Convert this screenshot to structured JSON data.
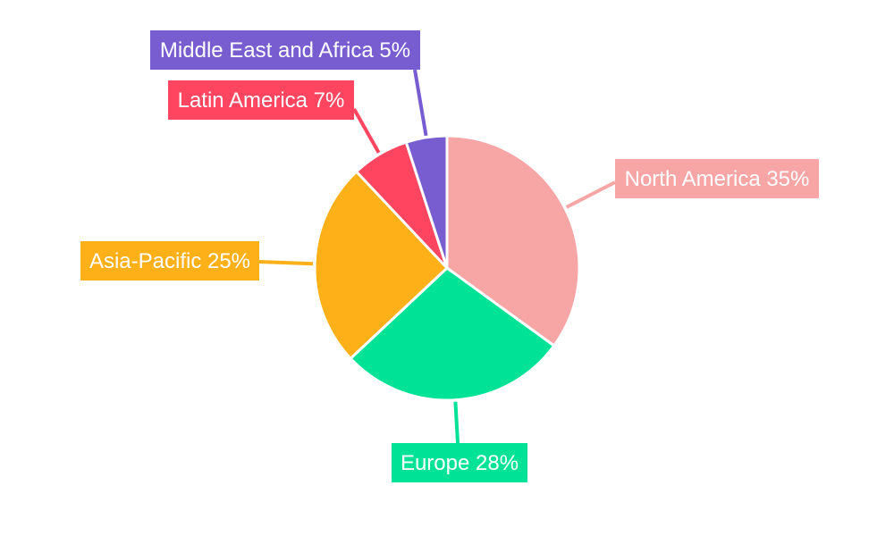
{
  "chart_data": {
    "type": "pie",
    "title": "",
    "start": "top",
    "direction": "clockwise",
    "slices": [
      {
        "label": "North America",
        "value": 35,
        "display": "North America 35%",
        "color": "#F8A5A5"
      },
      {
        "label": "Europe",
        "value": 28,
        "display": "Europe 28%",
        "color": "#00E396"
      },
      {
        "label": "Asia-Pacific",
        "value": 25,
        "display": "Asia-Pacific 25%",
        "color": "#FEB019"
      },
      {
        "label": "Latin America",
        "value": 7,
        "display": "Latin America 7%",
        "color": "#FF4560"
      },
      {
        "label": "Middle East and Africa",
        "value": 5,
        "display": "Middle East and Africa 5%",
        "color": "#775DD0"
      }
    ]
  }
}
